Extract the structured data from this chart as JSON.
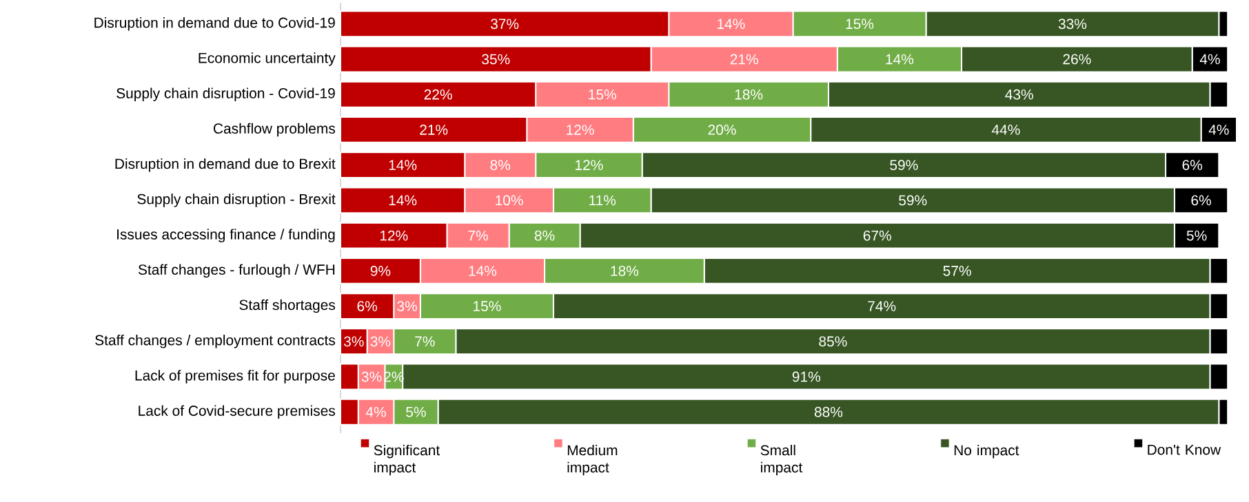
{
  "chart_data": {
    "type": "bar",
    "orientation": "horizontal",
    "stacked": true,
    "legend": "bottom",
    "categories": [
      "Disruption in demand due to Covid-19",
      "Economic uncertainty",
      "Supply chain disruption - Covid-19",
      "Cashflow problems",
      "Disruption in demand due to Brexit",
      "Supply chain disruption - Brexit",
      "Issues accessing finance / funding",
      "Staff changes - furlough / WFH",
      "Staff shortages",
      "Staff changes / employment contracts",
      "Lack of premises fit for purpose",
      "Lack of Covid-secure premises"
    ],
    "series": [
      {
        "name": "Significant impact",
        "color": "#c00000",
        "values": [
          37,
          35,
          22,
          21,
          14,
          14,
          12,
          9,
          6,
          3,
          2,
          2
        ],
        "value_labels": [
          "37%",
          "35%",
          "22%",
          "21%",
          "14%",
          "14%",
          "12%",
          "9%",
          "6%",
          "3%",
          null,
          null
        ]
      },
      {
        "name": "Medium impact",
        "color": "#ff7c80",
        "values": [
          14,
          21,
          15,
          12,
          8,
          10,
          7,
          14,
          3,
          3,
          3,
          4
        ],
        "value_labels": [
          "14%",
          "21%",
          "15%",
          "12%",
          "8%",
          "10%",
          "7%",
          "14%",
          "3%",
          "3%",
          "3%",
          "4%"
        ]
      },
      {
        "name": "Small impact",
        "color": "#70ad47",
        "values": [
          15,
          14,
          18,
          20,
          12,
          11,
          8,
          18,
          15,
          7,
          2,
          5
        ],
        "value_labels": [
          "15%",
          "14%",
          "18%",
          "20%",
          "12%",
          "11%",
          "8%",
          "18%",
          "15%",
          "7%",
          "2%",
          "5%"
        ]
      },
      {
        "name": "No impact",
        "color": "#375623",
        "values": [
          33,
          26,
          43,
          44,
          59,
          59,
          67,
          57,
          74,
          85,
          91,
          88
        ],
        "value_labels": [
          "33%",
          "26%",
          "43%",
          "44%",
          "59%",
          "59%",
          "67%",
          "57%",
          "74%",
          "85%",
          "91%",
          "88%"
        ]
      },
      {
        "name": "Don't Know",
        "color": "#000000",
        "values": [
          1,
          4,
          2,
          4,
          6,
          6,
          5,
          2,
          2,
          2,
          2,
          1
        ],
        "value_labels": [
          null,
          "4%",
          null,
          "4%",
          "6%",
          "6%",
          "5%",
          null,
          null,
          null,
          null,
          null
        ]
      }
    ]
  }
}
